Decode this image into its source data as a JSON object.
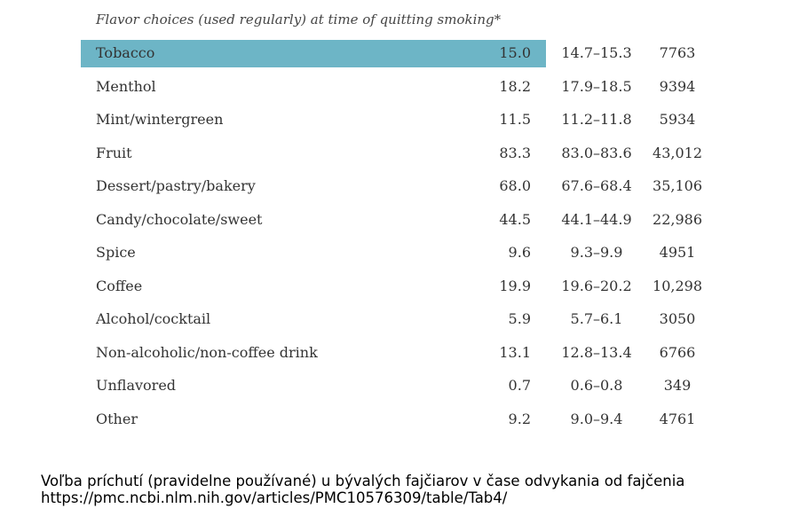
{
  "table": {
    "header": "Flavor choices (used regularly) at time of quitting smoking*",
    "rows": [
      [
        "Tobacco",
        "15.0",
        "14.7–15.3",
        "7763"
      ],
      [
        "Menthol",
        "18.2",
        "17.9–18.5",
        "9394"
      ],
      [
        "Mint/wintergreen",
        "11.5",
        "11.2–11.8",
        "5934"
      ],
      [
        "Fruit",
        "83.3",
        "83.0–83.6",
        "43,012"
      ],
      [
        "Dessert/pastry/bakery",
        "68.0",
        "67.6–68.4",
        "35,106"
      ],
      [
        "Candy/chocolate/sweet",
        "44.5",
        "44.1–44.9",
        "22,986"
      ],
      [
        "Spice",
        "9.6",
        "9.3–9.9",
        "4951"
      ],
      [
        "Coffee",
        "19.9",
        "19.6–20.2",
        "10,298"
      ],
      [
        "Alcohol/cocktail",
        "5.9",
        "5.7–6.1",
        "3050"
      ],
      [
        "Non-alcoholic/non-coffee drink",
        "13.1",
        "12.8–13.4",
        "6766"
      ],
      [
        "Unflavored",
        "0.7",
        "0.6–0.8",
        "349"
      ],
      [
        "Other",
        "9.2",
        "9.0–9.4",
        "4761"
      ]
    ]
  },
  "caption": {
    "title": "Voľba príchutí (pravidelne používané) u bývalých fajčiarov v čase odvykania od fajčenia",
    "url": "https://pmc.ncbi.nlm.nih.gov/articles/PMC10576309/table/Tab4/"
  }
}
